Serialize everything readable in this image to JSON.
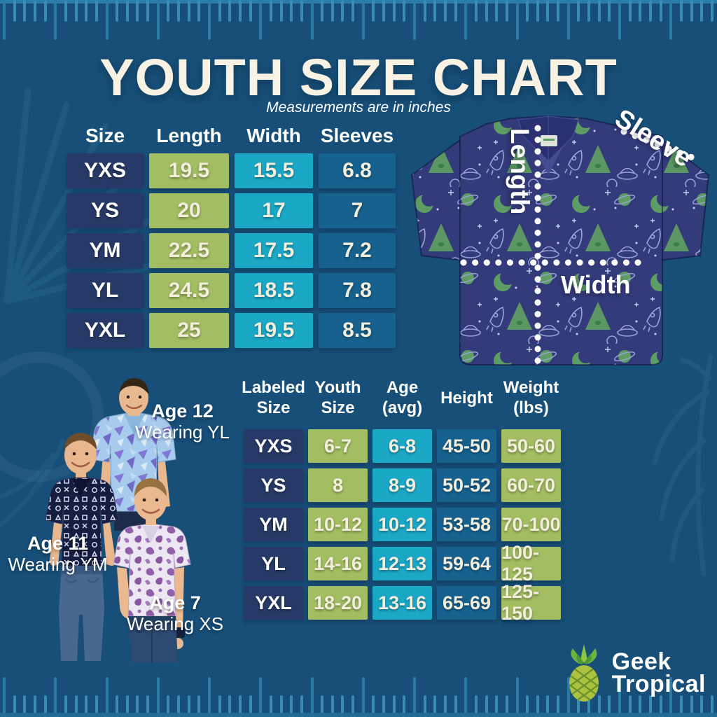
{
  "title": "YOUTH SIZE CHART",
  "subtitle": "Measurements are in inches",
  "colors": {
    "background": "#174f79",
    "navy_cell": "#273a67",
    "green_cell": "#a2bd62",
    "cyan_cell": "#1ba7c6",
    "blue_cell": "#17618f",
    "cream_text": "#f2eedb",
    "title_cream": "#f7f2e3",
    "ruler_tick": "#2b7aa3",
    "shirt_navy": "#343b7b",
    "shirt_pattern_green": "#5d9c62"
  },
  "size_table": {
    "headers": [
      "Size",
      "Length",
      "Width",
      "Sleeves"
    ],
    "rows": [
      [
        "YXS",
        "19.5",
        "15.5",
        "6.8"
      ],
      [
        "YS",
        "20",
        "17",
        "7"
      ],
      [
        "YM",
        "22.5",
        "17.5",
        "7.2"
      ],
      [
        "YL",
        "24.5",
        "18.5",
        "7.8"
      ],
      [
        "YXL",
        "25",
        "19.5",
        "8.5"
      ]
    ]
  },
  "fit_table": {
    "headers": [
      "Labeled Size",
      "Youth Size",
      "Age (avg)",
      "Height",
      "Weight (lbs)"
    ],
    "rows": [
      [
        "YXS",
        "6-7",
        "6-8",
        "45-50",
        "50-60"
      ],
      [
        "YS",
        "8",
        "8-9",
        "50-52",
        "60-70"
      ],
      [
        "YM",
        "10-12",
        "10-12",
        "53-58",
        "70-100"
      ],
      [
        "YL",
        "14-16",
        "12-13",
        "59-64",
        "100-125"
      ],
      [
        "YXL",
        "18-20",
        "13-16",
        "65-69",
        "125-150"
      ]
    ]
  },
  "shirt_diagram": {
    "length_label": "Length",
    "width_label": "Width",
    "sleeve_label": "Sleeve"
  },
  "models": [
    {
      "age": "Age 12",
      "wearing": "Wearing YL"
    },
    {
      "age": "Age 11",
      "wearing": "Wearing YM"
    },
    {
      "age": "Age 7",
      "wearing": "Wearing XS"
    }
  ],
  "brand": {
    "line1": "Geek",
    "line2": "Tropical",
    "icon": "pineapple-icon"
  }
}
